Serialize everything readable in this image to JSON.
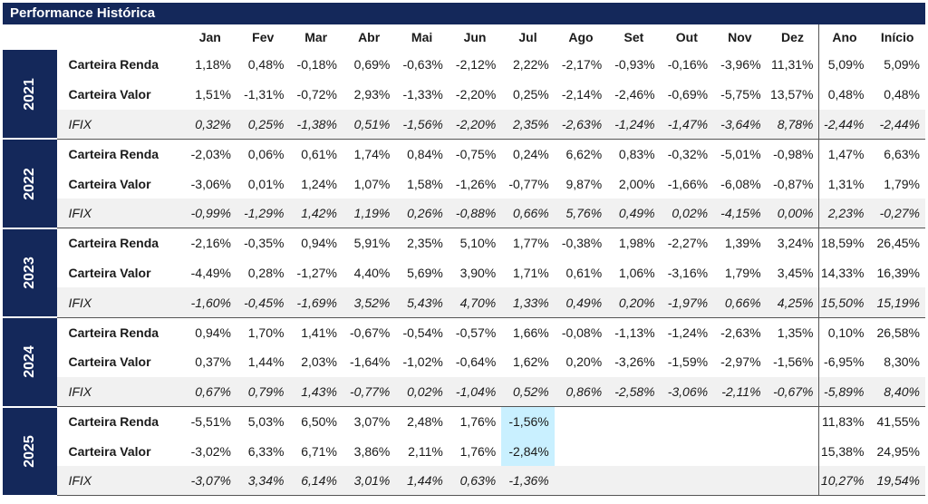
{
  "title": "Performance Histórica",
  "columns": [
    "Jan",
    "Fev",
    "Mar",
    "Abr",
    "Mai",
    "Jun",
    "Jul",
    "Ago",
    "Set",
    "Out",
    "Nov",
    "Dez",
    "Ano",
    "Início"
  ],
  "years": [
    {
      "year": "2021",
      "rows": [
        {
          "label": "Carteira Renda",
          "values": [
            "1,18%",
            "0,48%",
            "-0,18%",
            "0,69%",
            "-0,63%",
            "-2,12%",
            "2,22%",
            "-2,17%",
            "-0,93%",
            "-0,16%",
            "-3,96%",
            "11,31%",
            "5,09%",
            "5,09%"
          ]
        },
        {
          "label": "Carteira Valor",
          "values": [
            "1,51%",
            "-1,31%",
            "-0,72%",
            "2,93%",
            "-1,33%",
            "-2,20%",
            "0,25%",
            "-2,14%",
            "-2,46%",
            "-0,69%",
            "-5,75%",
            "13,57%",
            "0,48%",
            "0,48%"
          ]
        },
        {
          "label": "IFIX",
          "values": [
            "0,32%",
            "0,25%",
            "-1,38%",
            "0,51%",
            "-1,56%",
            "-2,20%",
            "2,35%",
            "-2,63%",
            "-1,24%",
            "-1,47%",
            "-3,64%",
            "8,78%",
            "-2,44%",
            "-2,44%"
          ]
        }
      ]
    },
    {
      "year": "2022",
      "rows": [
        {
          "label": "Carteira Renda",
          "values": [
            "-2,03%",
            "0,06%",
            "0,61%",
            "1,74%",
            "0,84%",
            "-0,75%",
            "0,24%",
            "6,62%",
            "0,83%",
            "-0,32%",
            "-5,01%",
            "-0,98%",
            "1,47%",
            "6,63%"
          ]
        },
        {
          "label": "Carteira Valor",
          "values": [
            "-3,06%",
            "0,01%",
            "1,24%",
            "1,07%",
            "1,58%",
            "-1,26%",
            "-0,77%",
            "9,87%",
            "2,00%",
            "-1,66%",
            "-6,08%",
            "-0,87%",
            "1,31%",
            "1,79%"
          ]
        },
        {
          "label": "IFIX",
          "values": [
            "-0,99%",
            "-1,29%",
            "1,42%",
            "1,19%",
            "0,26%",
            "-0,88%",
            "0,66%",
            "5,76%",
            "0,49%",
            "0,02%",
            "-4,15%",
            "0,00%",
            "2,23%",
            "-0,27%"
          ]
        }
      ]
    },
    {
      "year": "2023",
      "rows": [
        {
          "label": "Carteira Renda",
          "values": [
            "-2,16%",
            "-0,35%",
            "0,94%",
            "5,91%",
            "2,35%",
            "5,10%",
            "1,77%",
            "-0,38%",
            "1,98%",
            "-2,27%",
            "1,39%",
            "3,24%",
            "18,59%",
            "26,45%"
          ]
        },
        {
          "label": "Carteira Valor",
          "values": [
            "-4,49%",
            "0,28%",
            "-1,27%",
            "4,40%",
            "5,69%",
            "3,90%",
            "1,71%",
            "0,61%",
            "1,06%",
            "-3,16%",
            "1,79%",
            "3,45%",
            "14,33%",
            "16,39%"
          ]
        },
        {
          "label": "IFIX",
          "values": [
            "-1,60%",
            "-0,45%",
            "-1,69%",
            "3,52%",
            "5,43%",
            "4,70%",
            "1,33%",
            "0,49%",
            "0,20%",
            "-1,97%",
            "0,66%",
            "4,25%",
            "15,50%",
            "15,19%"
          ]
        }
      ]
    },
    {
      "year": "2024",
      "rows": [
        {
          "label": "Carteira Renda",
          "values": [
            "0,94%",
            "1,70%",
            "1,41%",
            "-0,67%",
            "-0,54%",
            "-0,57%",
            "1,66%",
            "-0,08%",
            "-1,13%",
            "-1,24%",
            "-2,63%",
            "1,35%",
            "0,10%",
            "26,58%"
          ]
        },
        {
          "label": "Carteira Valor",
          "values": [
            "0,37%",
            "1,44%",
            "2,03%",
            "-1,64%",
            "-1,02%",
            "-0,64%",
            "1,62%",
            "0,20%",
            "-3,26%",
            "-1,59%",
            "-2,97%",
            "-1,56%",
            "-6,95%",
            "8,30%"
          ]
        },
        {
          "label": "IFIX",
          "values": [
            "0,67%",
            "0,79%",
            "1,43%",
            "-0,77%",
            "0,02%",
            "-1,04%",
            "0,52%",
            "0,86%",
            "-2,58%",
            "-3,06%",
            "-2,11%",
            "-0,67%",
            "-5,89%",
            "8,40%"
          ]
        }
      ]
    },
    {
      "year": "2025",
      "rows": [
        {
          "label": "Carteira Renda",
          "values": [
            "-5,51%",
            "5,03%",
            "6,50%",
            "3,07%",
            "2,48%",
            "1,76%",
            "-1,56%",
            "",
            "",
            "",
            "",
            "",
            "11,83%",
            "41,55%"
          ]
        },
        {
          "label": "Carteira Valor",
          "values": [
            "-3,02%",
            "6,33%",
            "6,71%",
            "3,86%",
            "2,11%",
            "1,76%",
            "-2,84%",
            "",
            "",
            "",
            "",
            "",
            "15,38%",
            "24,95%"
          ]
        },
        {
          "label": "IFIX",
          "values": [
            "-3,07%",
            "3,34%",
            "6,14%",
            "3,01%",
            "1,44%",
            "0,63%",
            "-1,36%",
            "",
            "",
            "",
            "",
            "",
            "10,27%",
            "19,54%"
          ]
        }
      ]
    }
  ],
  "highlight_color": "#c9f0ff",
  "header_color": "#14285a"
}
